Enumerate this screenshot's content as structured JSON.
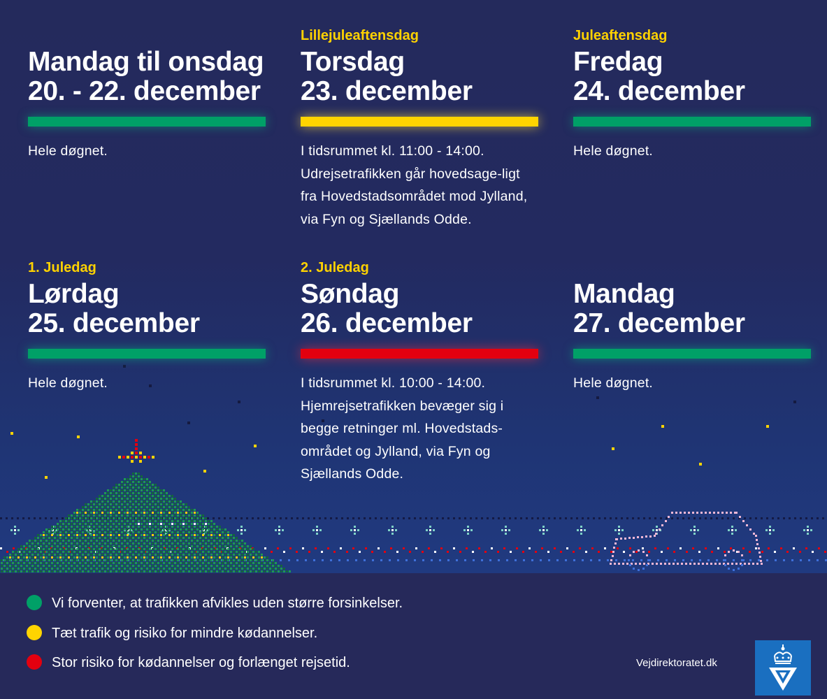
{
  "colors": {
    "green": "#00a067",
    "yellow": "#ffd400",
    "red": "#e3000f",
    "background": "#26295a"
  },
  "days": [
    {
      "eyebrow": "",
      "title_line1": "Mandag til onsdag",
      "title_line2": "20. - 22. december",
      "status": "green",
      "description": "Hele døgnet."
    },
    {
      "eyebrow": "Lillejuleaftensdag",
      "title_line1": "Torsdag",
      "title_line2": "23. december",
      "status": "yellow",
      "description": "I tidsrummet kl. 11:00 - 14:00. Udrejsetrafikken går hovedsage-ligt fra Hovedstadsområdet mod Jylland, via Fyn og Sjællands Odde."
    },
    {
      "eyebrow": "Juleaftensdag",
      "title_line1": "Fredag",
      "title_line2": "24. december",
      "status": "green",
      "description": "Hele døgnet."
    },
    {
      "eyebrow": "1. Juledag",
      "title_line1": "Lørdag",
      "title_line2": "25. december",
      "status": "green",
      "description": "Hele døgnet."
    },
    {
      "eyebrow": "2. Juledag",
      "title_line1": "Søndag",
      "title_line2": "26. december",
      "status": "red",
      "description": "I tidsrummet kl. 10:00 - 14:00. Hjemrejsetrafikken bevæger sig i begge retninger ml. Hovedstads-området og Jylland, via Fyn og Sjællands Odde."
    },
    {
      "eyebrow": "",
      "title_line1": "Mandag",
      "title_line2": "27. december",
      "status": "green",
      "description": "Hele døgnet."
    }
  ],
  "legend": [
    {
      "color": "#00a067",
      "text": "Vi forventer, at trafikken afvikles uden større forsinkelser."
    },
    {
      "color": "#ffd400",
      "text": "Tæt trafik og risiko for mindre kødannelser."
    },
    {
      "color": "#e3000f",
      "text": "Stor risiko for kødannelser og forlænget rejsetid."
    }
  ],
  "footer": {
    "url": "Vejdirektoratet.dk",
    "logo_icon": "crown-v-logo-icon"
  },
  "decoration": {
    "tree_icon": "christmas-tree-pixel-icon",
    "car_icon": "car-outline-pixel-icon"
  }
}
